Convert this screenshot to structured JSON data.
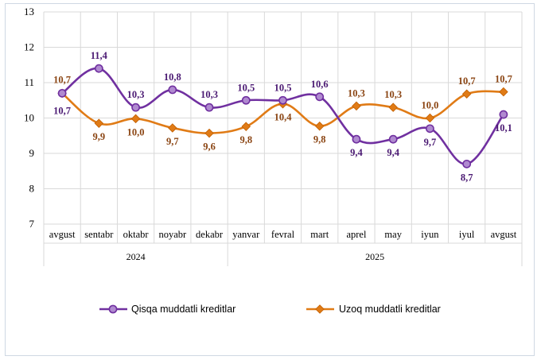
{
  "chart_data": {
    "type": "line",
    "categories": [
      "avgust",
      "sentabr",
      "oktabr",
      "noyabr",
      "dekabr",
      "yanvar",
      "fevral",
      "mart",
      "aprel",
      "may",
      "iyun",
      "iyul",
      "avgust"
    ],
    "year_groups": [
      {
        "label": "2024",
        "start": 0,
        "end": 4
      },
      {
        "label": "2025",
        "start": 5,
        "end": 12
      }
    ],
    "ylim": [
      7,
      13
    ],
    "yticks": [
      7,
      8,
      9,
      10,
      11,
      12,
      13
    ],
    "series": [
      {
        "name": "Qisqa muddatli kreditlar",
        "color": "#7030a0",
        "values": [
          10.7,
          11.4,
          10.3,
          10.8,
          10.3,
          10.5,
          10.5,
          10.6,
          9.4,
          9.4,
          9.7,
          8.7,
          10.1
        ],
        "labels": [
          "10,7",
          "11,4",
          "10,3",
          "10,8",
          "10,3",
          "10,5",
          "10,5",
          "10,6",
          "9,4",
          "9,4",
          "9,7",
          "8,7",
          "10,1"
        ]
      },
      {
        "name": "Uzoq muddatli kreditlar",
        "color": "#e07b16",
        "label_color": "#8b4513",
        "values": [
          10.7,
          9.85,
          9.98,
          9.72,
          9.57,
          9.76,
          10.4,
          9.77,
          10.34,
          10.3,
          10.0,
          10.68,
          10.74
        ],
        "labels": [
          "10,7",
          "9,9",
          "10,0",
          "9,7",
          "9,6",
          "9,8",
          "10,4",
          "9,8",
          "10,3",
          "10,3",
          "10,0",
          "10,7",
          "10,7"
        ]
      }
    ],
    "legend_position": "bottom",
    "grid": true
  }
}
